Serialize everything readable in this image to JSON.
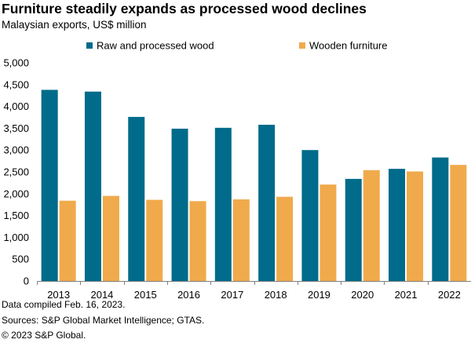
{
  "chart_data": {
    "type": "bar",
    "title": "Furniture steadily expands as processed wood declines",
    "subtitle": "Malaysian exports, US$ million",
    "categories": [
      "2013",
      "2014",
      "2015",
      "2016",
      "2017",
      "2018",
      "2019",
      "2020",
      "2021",
      "2022"
    ],
    "series": [
      {
        "name": "Raw and processed wood",
        "color": "#006b8a",
        "values": [
          4380,
          4340,
          3760,
          3490,
          3510,
          3580,
          3000,
          2340,
          2570,
          2830
        ]
      },
      {
        "name": "Wooden furniture",
        "color": "#f0aa4c",
        "values": [
          1840,
          1950,
          1860,
          1830,
          1870,
          1930,
          2210,
          2540,
          2510,
          2660
        ]
      }
    ],
    "yticks": [
      "0",
      "500",
      "1,000",
      "1,500",
      "2,000",
      "2,500",
      "3,000",
      "3,500",
      "4,000",
      "4,500",
      "5,000"
    ],
    "ylim": [
      0,
      5000
    ],
    "xlabel": "",
    "ylabel": "",
    "legend_position": "top",
    "grid": false
  },
  "footnotes": [
    "Data compiled Feb. 16, 2023.",
    "Sources: S&P Global Market Intelligence;  GTAS.",
    "© 2023 S&P Global."
  ]
}
